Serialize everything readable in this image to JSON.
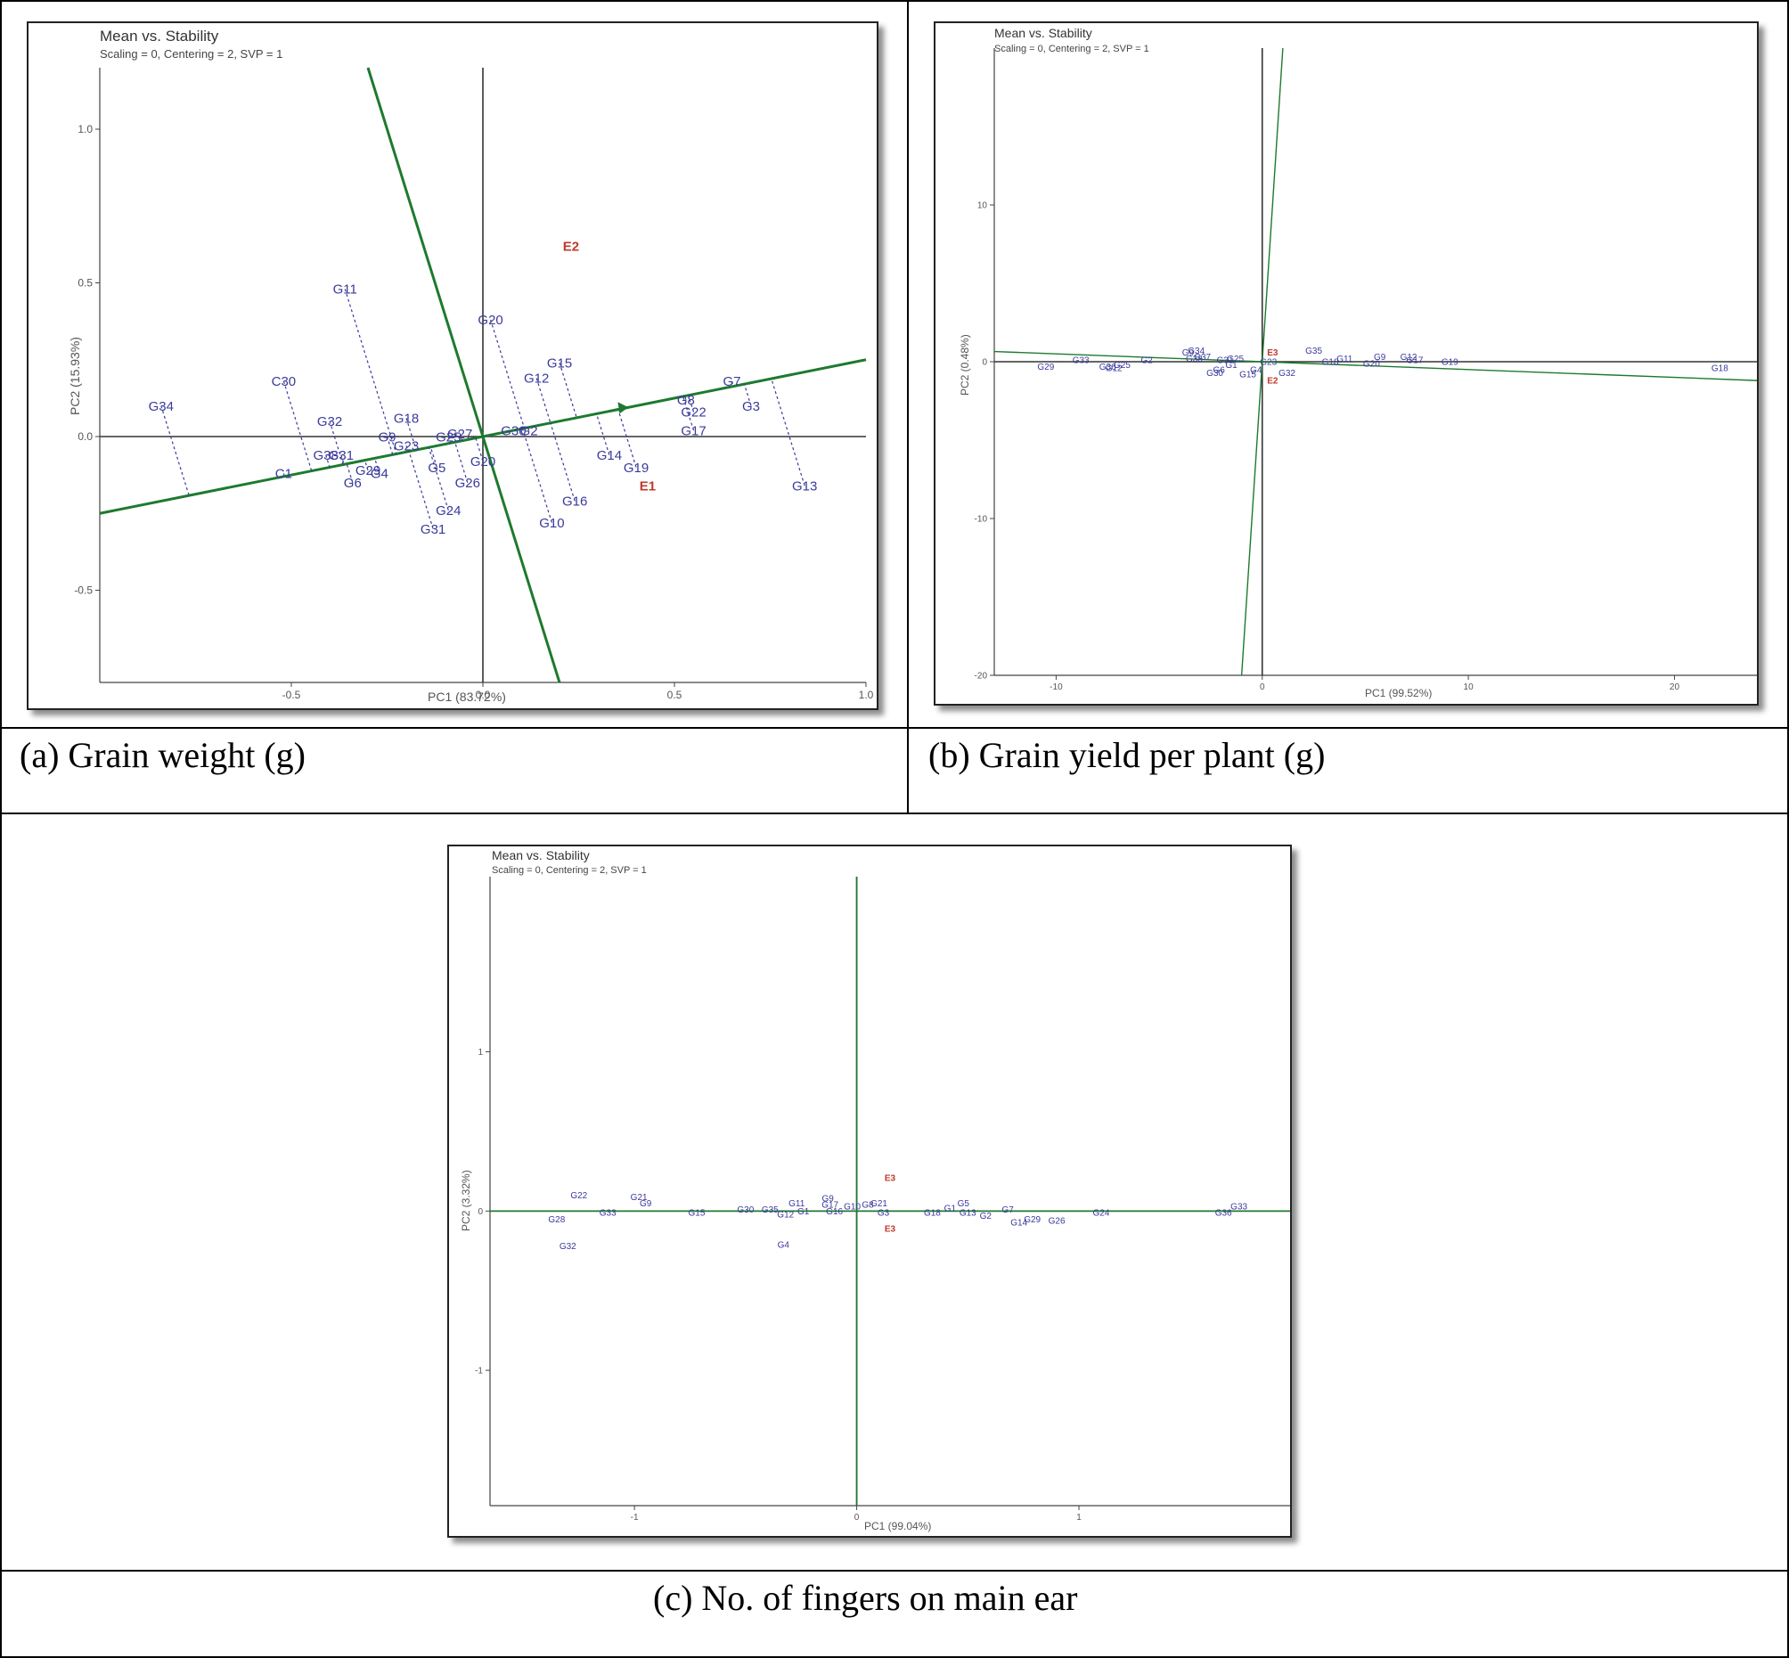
{
  "captions": {
    "a": "(a) Grain weight (g)",
    "b": "(b) Grain yield per plant (g)",
    "c": "(c) No. of fingers on main ear"
  },
  "colors": {
    "genotype": "#3a3a9c",
    "environment": "#c0392b",
    "axis_line": "#1d7a2e",
    "projection": "#3a3a9c"
  },
  "chart_data": [
    {
      "type": "scatter",
      "title": "Mean vs. Stability",
      "subtitle": "Scaling = 0, Centering = 2, SVP = 1",
      "xlabel": "PC1 (83.72%)",
      "ylabel": "PC2 (15.93%)",
      "xlim": [
        -1.0,
        1.0
      ],
      "ylim": [
        -0.8,
        1.2
      ],
      "xticks": [
        -0.5,
        0.0,
        0.5,
        1.0
      ],
      "xtick_labels": [
        "-0.5",
        "0.0",
        "0.5",
        "1.0"
      ],
      "yticks": [
        -0.5,
        0.0,
        0.5,
        1.0
      ],
      "ytick_labels": [
        "-0.5",
        "0.0",
        "0.5",
        "1.0"
      ],
      "aec_abscissa_slope": 0.25,
      "aec_ordinate_slope": -4.0,
      "genotypes": [
        {
          "label": "G34",
          "x": -0.84,
          "y": 0.1
        },
        {
          "label": "C30",
          "x": -0.52,
          "y": 0.18
        },
        {
          "label": "G11",
          "x": -0.36,
          "y": 0.48
        },
        {
          "label": "G32",
          "x": -0.4,
          "y": 0.05
        },
        {
          "label": "G18",
          "x": -0.2,
          "y": 0.06
        },
        {
          "label": "G9",
          "x": -0.25,
          "y": 0.0
        },
        {
          "label": "G23",
          "x": -0.2,
          "y": -0.03
        },
        {
          "label": "G38",
          "x": -0.41,
          "y": -0.06
        },
        {
          "label": "G31",
          "x": -0.37,
          "y": -0.06
        },
        {
          "label": "C1",
          "x": -0.52,
          "y": -0.12
        },
        {
          "label": "G6",
          "x": -0.34,
          "y": -0.15
        },
        {
          "label": "G29",
          "x": -0.3,
          "y": -0.11
        },
        {
          "label": "G4",
          "x": -0.27,
          "y": -0.12
        },
        {
          "label": "G5",
          "x": -0.12,
          "y": -0.1
        },
        {
          "label": "G25",
          "x": -0.09,
          "y": 0.0
        },
        {
          "label": "G27",
          "x": -0.06,
          "y": 0.01
        },
        {
          "label": "G26",
          "x": -0.04,
          "y": -0.15
        },
        {
          "label": "G24",
          "x": -0.09,
          "y": -0.24
        },
        {
          "label": "G31",
          "x": -0.13,
          "y": -0.3
        },
        {
          "label": "G20",
          "x": 0.0,
          "y": -0.08
        },
        {
          "label": "G20",
          "x": 0.02,
          "y": 0.38
        },
        {
          "label": "G30",
          "x": 0.08,
          "y": 0.02
        },
        {
          "label": "G2",
          "x": 0.12,
          "y": 0.02
        },
        {
          "label": "G12",
          "x": 0.14,
          "y": 0.19
        },
        {
          "label": "G15",
          "x": 0.2,
          "y": 0.24
        },
        {
          "label": "G10",
          "x": 0.18,
          "y": -0.28
        },
        {
          "label": "G16",
          "x": 0.24,
          "y": -0.21
        },
        {
          "label": "G14",
          "x": 0.33,
          "y": -0.06
        },
        {
          "label": "G19",
          "x": 0.4,
          "y": -0.1
        },
        {
          "label": "G8",
          "x": 0.53,
          "y": 0.12
        },
        {
          "label": "G22",
          "x": 0.55,
          "y": 0.08
        },
        {
          "label": "G17",
          "x": 0.55,
          "y": 0.02
        },
        {
          "label": "G7",
          "x": 0.65,
          "y": 0.18
        },
        {
          "label": "G3",
          "x": 0.7,
          "y": 0.1
        },
        {
          "label": "G13",
          "x": 0.84,
          "y": -0.16
        }
      ],
      "environments": [
        {
          "label": "E2",
          "x": 0.23,
          "y": 0.62
        },
        {
          "label": "E1",
          "x": 0.43,
          "y": -0.16
        }
      ]
    },
    {
      "type": "scatter",
      "title": "Mean vs. Stability",
      "subtitle": "Scaling = 0, Centering = 2, SVP = 1",
      "xlabel": "PC1 (99.52%)",
      "ylabel": "PC2 (0.48%)",
      "xlim": [
        -13,
        24
      ],
      "ylim": [
        -20,
        20
      ],
      "xticks": [
        -10,
        0,
        10,
        20
      ],
      "xtick_labels": [
        "-10",
        "0",
        "10",
        "20"
      ],
      "yticks": [
        -20,
        -10,
        0,
        10
      ],
      "ytick_labels": [
        "-20",
        "-10",
        "0",
        "10"
      ],
      "aec_abscissa_slope": -0.05,
      "aec_ordinate_slope": 20.0,
      "genotypes": [
        {
          "label": "G29",
          "x": -10.5,
          "y": -0.3
        },
        {
          "label": "G33",
          "x": -8.8,
          "y": 0.1
        },
        {
          "label": "G36",
          "x": -7.5,
          "y": -0.3
        },
        {
          "label": "G12",
          "x": -7.2,
          "y": -0.4
        },
        {
          "label": "G25",
          "x": -6.8,
          "y": -0.2
        },
        {
          "label": "G2",
          "x": -5.6,
          "y": 0.1
        },
        {
          "label": "G34",
          "x": -3.2,
          "y": 0.7
        },
        {
          "label": "G9",
          "x": -3.6,
          "y": 0.6
        },
        {
          "label": "G37",
          "x": -2.9,
          "y": 0.3
        },
        {
          "label": "G38",
          "x": -3.3,
          "y": 0.2
        },
        {
          "label": "G31",
          "x": -1.8,
          "y": 0.1
        },
        {
          "label": "G25",
          "x": -1.3,
          "y": 0.2
        },
        {
          "label": "G6",
          "x": -2.1,
          "y": -0.5
        },
        {
          "label": "G30",
          "x": -2.3,
          "y": -0.7
        },
        {
          "label": "G1",
          "x": -1.5,
          "y": -0.2
        },
        {
          "label": "G23",
          "x": 0.3,
          "y": 0.0
        },
        {
          "label": "G4",
          "x": -0.3,
          "y": -0.5
        },
        {
          "label": "G15",
          "x": -0.7,
          "y": -0.8
        },
        {
          "label": "G32",
          "x": 1.2,
          "y": -0.7
        },
        {
          "label": "G35",
          "x": 2.5,
          "y": 0.7
        },
        {
          "label": "G18",
          "x": 3.3,
          "y": 0.0
        },
        {
          "label": "G11",
          "x": 4.0,
          "y": 0.2
        },
        {
          "label": "G9",
          "x": 5.7,
          "y": 0.3
        },
        {
          "label": "G20",
          "x": 5.3,
          "y": -0.1
        },
        {
          "label": "G12",
          "x": 7.1,
          "y": 0.3
        },
        {
          "label": "G17",
          "x": 7.4,
          "y": 0.1
        },
        {
          "label": "G19",
          "x": 9.1,
          "y": 0.0
        },
        {
          "label": "G18",
          "x": 22.2,
          "y": -0.4
        }
      ],
      "environments": [
        {
          "label": "E3",
          "x": 0.5,
          "y": 0.6
        },
        {
          "label": "E2",
          "x": 0.5,
          "y": -1.2
        }
      ]
    },
    {
      "type": "scatter",
      "title": "Mean vs. Stability",
      "subtitle": "Scaling = 0, Centering = 2, SVP = 1",
      "xlabel": "PC1 (99.04%)",
      "ylabel": "PC2 (3.32%)",
      "xlim": [
        -1.65,
        1.95
      ],
      "ylim": [
        -1.85,
        2.1
      ],
      "xticks": [
        -1,
        0,
        1
      ],
      "xtick_labels": [
        "-1",
        "0",
        "1"
      ],
      "yticks": [
        -1,
        0,
        1
      ],
      "ytick_labels": [
        "-1",
        "0",
        "1"
      ],
      "aec_abscissa_slope": 0.0,
      "aec_ordinate_slope": null,
      "genotypes": [
        {
          "label": "G22",
          "x": -1.25,
          "y": 0.1
        },
        {
          "label": "G28",
          "x": -1.35,
          "y": -0.05
        },
        {
          "label": "G33",
          "x": -1.12,
          "y": -0.01
        },
        {
          "label": "G32",
          "x": -1.3,
          "y": -0.22
        },
        {
          "label": "G21",
          "x": -0.98,
          "y": 0.09
        },
        {
          "label": "G9",
          "x": -0.95,
          "y": 0.05
        },
        {
          "label": "G15",
          "x": -0.72,
          "y": -0.01
        },
        {
          "label": "G30",
          "x": -0.5,
          "y": 0.01
        },
        {
          "label": "G35",
          "x": -0.39,
          "y": 0.01
        },
        {
          "label": "G11",
          "x": -0.27,
          "y": 0.05
        },
        {
          "label": "G12",
          "x": -0.32,
          "y": -0.02
        },
        {
          "label": "G1",
          "x": -0.24,
          "y": 0.0
        },
        {
          "label": "G4",
          "x": -0.33,
          "y": -0.21
        },
        {
          "label": "G9",
          "x": -0.13,
          "y": 0.08
        },
        {
          "label": "G17",
          "x": -0.12,
          "y": 0.04
        },
        {
          "label": "G16",
          "x": -0.1,
          "y": 0.0
        },
        {
          "label": "G10",
          "x": -0.02,
          "y": 0.03
        },
        {
          "label": "G8",
          "x": 0.05,
          "y": 0.04
        },
        {
          "label": "G21",
          "x": 0.1,
          "y": 0.05
        },
        {
          "label": "G3",
          "x": 0.12,
          "y": -0.01
        },
        {
          "label": "G18",
          "x": 0.34,
          "y": -0.01
        },
        {
          "label": "G1",
          "x": 0.42,
          "y": 0.02
        },
        {
          "label": "G5",
          "x": 0.48,
          "y": 0.05
        },
        {
          "label": "G13",
          "x": 0.5,
          "y": -0.01
        },
        {
          "label": "G2",
          "x": 0.58,
          "y": -0.03
        },
        {
          "label": "G7",
          "x": 0.68,
          "y": 0.01
        },
        {
          "label": "G14",
          "x": 0.73,
          "y": -0.07
        },
        {
          "label": "G29",
          "x": 0.79,
          "y": -0.05
        },
        {
          "label": "G26",
          "x": 0.9,
          "y": -0.06
        },
        {
          "label": "G24",
          "x": 1.1,
          "y": -0.01
        },
        {
          "label": "G33",
          "x": 1.72,
          "y": 0.03
        },
        {
          "label": "G36",
          "x": 1.65,
          "y": -0.01
        }
      ],
      "environments": [
        {
          "label": "E3",
          "x": 0.15,
          "y": 0.21
        },
        {
          "label": "E3",
          "x": 0.15,
          "y": -0.11
        }
      ]
    }
  ]
}
